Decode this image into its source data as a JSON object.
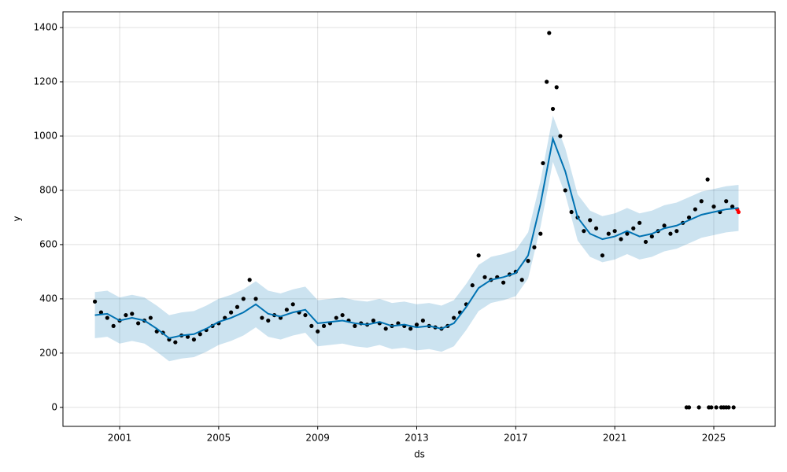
{
  "chart_data": {
    "type": "scatter",
    "xlabel": "ds",
    "ylabel": "y",
    "xlim": [
      1998.71,
      2027.48
    ],
    "ylim": [
      -70,
      1458
    ],
    "xticks": [
      2001,
      2005,
      2009,
      2013,
      2017,
      2021,
      2025
    ],
    "yticks": [
      0,
      200,
      400,
      600,
      800,
      1000,
      1200,
      1400
    ],
    "grid": true,
    "series": [
      {
        "color": "#000000",
        "x": [
          2000.0,
          2000.25,
          2000.5,
          2000.75,
          2001.0,
          2001.25,
          2001.5,
          2001.75,
          2002.0,
          2002.25,
          2002.5,
          2002.75,
          2003.0,
          2003.25,
          2003.5,
          2003.75,
          2004.0,
          2004.25,
          2004.5,
          2004.75,
          2005.0,
          2005.25,
          2005.5,
          2005.75,
          2006.0,
          2006.25,
          2006.5,
          2006.75,
          2007.0,
          2007.25,
          2007.5,
          2007.75,
          2008.0,
          2008.25,
          2008.5,
          2008.75,
          2009.0,
          2009.25,
          2009.5,
          2009.75,
          2010.0,
          2010.25,
          2010.5,
          2010.75,
          2011.0,
          2011.25,
          2011.5,
          2011.75,
          2012.0,
          2012.25,
          2012.5,
          2012.75,
          2013.0,
          2013.25,
          2013.5,
          2013.75,
          2014.0,
          2014.25,
          2014.5,
          2014.75,
          2015.0,
          2015.25,
          2015.5,
          2015.75,
          2016.0,
          2016.25,
          2016.5,
          2016.75,
          2017.0,
          2017.25,
          2017.5,
          2017.75,
          2018.0,
          2018.1,
          2018.25,
          2018.35,
          2018.5,
          2018.65,
          2018.8,
          2019.0,
          2019.25,
          2019.5,
          2019.75,
          2020.0,
          2020.25,
          2020.5,
          2020.75,
          2021.0,
          2021.25,
          2021.5,
          2021.75,
          2022.0,
          2022.25,
          2022.5,
          2022.75,
          2023.0,
          2023.25,
          2023.5,
          2023.75,
          2024.0,
          2024.25,
          2024.5,
          2024.75,
          2025.0,
          2025.25,
          2025.5,
          2025.75
        ],
        "values": [
          390,
          350,
          330,
          300,
          320,
          340,
          345,
          310,
          320,
          330,
          280,
          275,
          250,
          240,
          265,
          260,
          250,
          270,
          285,
          300,
          310,
          330,
          350,
          370,
          400,
          470,
          400,
          330,
          320,
          340,
          330,
          360,
          380,
          350,
          340,
          300,
          280,
          300,
          310,
          330,
          340,
          320,
          300,
          310,
          305,
          320,
          310,
          290,
          300,
          310,
          300,
          290,
          305,
          320,
          300,
          295,
          290,
          300,
          330,
          350,
          380,
          450,
          560,
          480,
          470,
          480,
          460,
          490,
          500,
          470,
          540,
          590,
          640,
          900,
          1200,
          1380,
          1100,
          1180,
          1000,
          800,
          720,
          700,
          650,
          690,
          660,
          560,
          640,
          650,
          620,
          640,
          660,
          680,
          610,
          630,
          650,
          670,
          640,
          650,
          680,
          700,
          730,
          760,
          840,
          740,
          720,
          760,
          740
        ]
      },
      {
        "color": "#000000",
        "x": [
          2023.9,
          2024.0,
          2024.4,
          2024.8,
          2024.9,
          2025.1,
          2025.3,
          2025.4,
          2025.5,
          2025.6,
          2025.8
        ],
        "values": [
          0,
          0,
          0,
          0,
          0,
          0,
          0,
          0,
          0,
          0,
          0
        ]
      },
      {
        "color": "#ff0000",
        "x": [
          2025.95,
          2026.0
        ],
        "values": [
          730,
          720
        ]
      }
    ],
    "forecast": {
      "color": "#0072b2",
      "band_color": "#0072b2",
      "x": [
        2000,
        2000.5,
        2001,
        2001.5,
        2002,
        2002.5,
        2003,
        2003.5,
        2004,
        2004.5,
        2005,
        2005.5,
        2006,
        2006.5,
        2007,
        2007.5,
        2008,
        2008.5,
        2009,
        2009.5,
        2010,
        2010.5,
        2011,
        2011.5,
        2012,
        2012.5,
        2013,
        2013.5,
        2014,
        2014.5,
        2015,
        2015.5,
        2016,
        2016.5,
        2017,
        2017.5,
        2018,
        2018.5,
        2019,
        2019.5,
        2020,
        2020.5,
        2021,
        2021.5,
        2022,
        2022.5,
        2023,
        2023.5,
        2024,
        2024.5,
        2025,
        2025.5,
        2026
      ],
      "values": [
        340,
        345,
        320,
        330,
        320,
        290,
        255,
        265,
        270,
        290,
        315,
        330,
        350,
        380,
        345,
        335,
        350,
        360,
        310,
        315,
        320,
        310,
        305,
        315,
        300,
        305,
        295,
        300,
        290,
        310,
        370,
        440,
        470,
        480,
        495,
        560,
        750,
        990,
        870,
        700,
        640,
        620,
        630,
        650,
        630,
        640,
        660,
        670,
        690,
        710,
        720,
        730,
        735
      ],
      "lower": [
        255,
        260,
        235,
        245,
        235,
        205,
        170,
        180,
        185,
        205,
        230,
        245,
        265,
        295,
        260,
        250,
        265,
        275,
        225,
        230,
        235,
        225,
        220,
        230,
        215,
        220,
        210,
        215,
        205,
        225,
        285,
        355,
        385,
        395,
        410,
        475,
        665,
        905,
        785,
        615,
        555,
        535,
        545,
        565,
        545,
        555,
        575,
        585,
        605,
        625,
        635,
        645,
        650
      ],
      "upper": [
        425,
        430,
        405,
        415,
        405,
        375,
        340,
        350,
        355,
        375,
        400,
        415,
        435,
        465,
        430,
        420,
        435,
        445,
        395,
        400,
        405,
        395,
        390,
        400,
        385,
        390,
        380,
        385,
        375,
        395,
        455,
        525,
        555,
        565,
        580,
        645,
        835,
        1075,
        955,
        785,
        725,
        705,
        715,
        735,
        715,
        725,
        745,
        755,
        775,
        795,
        805,
        815,
        820
      ]
    }
  }
}
